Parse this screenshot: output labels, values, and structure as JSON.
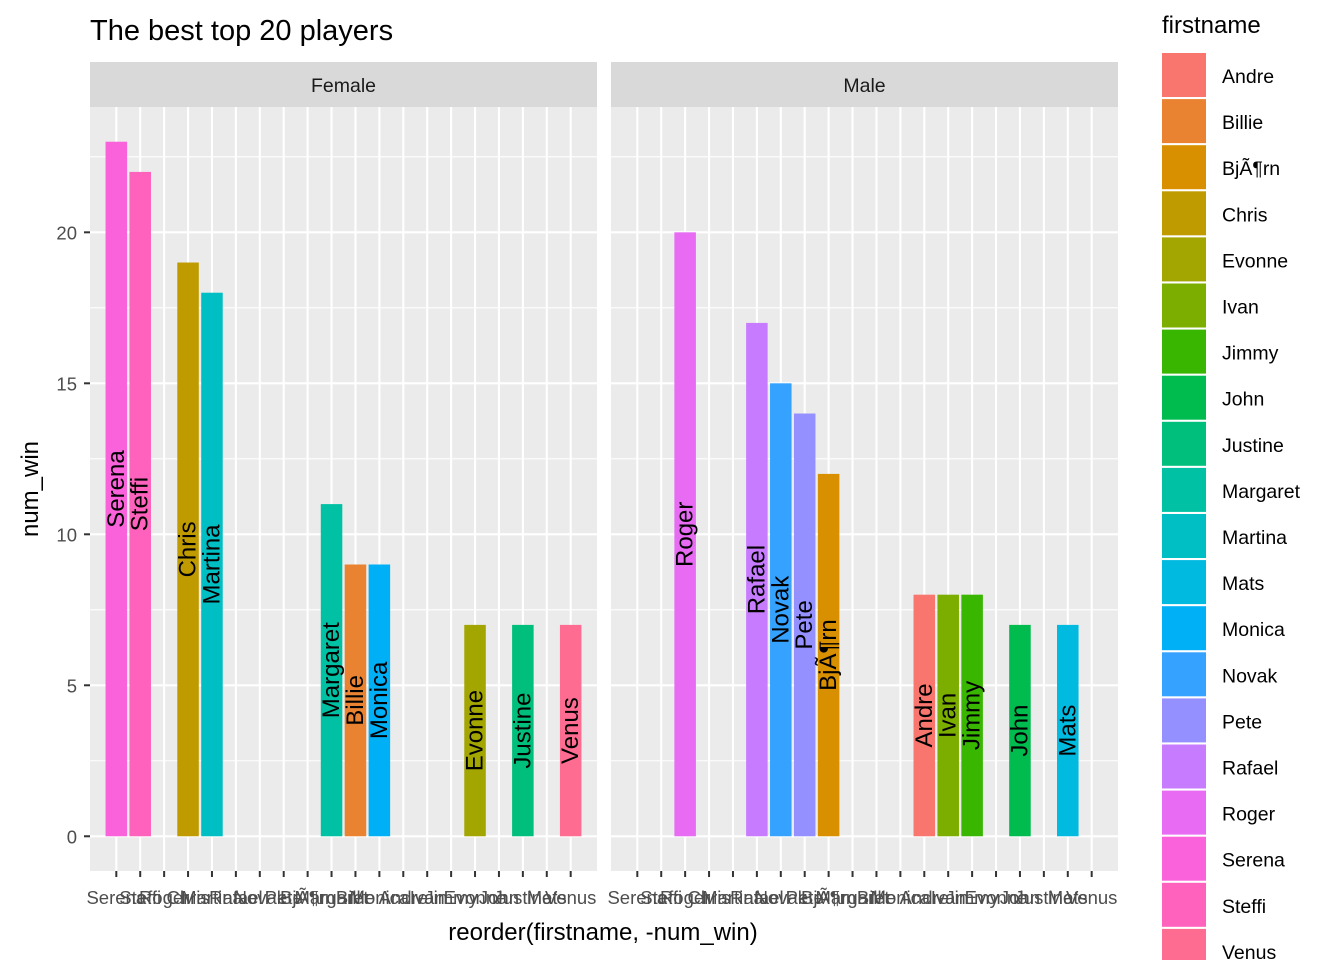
{
  "chart_data": {
    "type": "bar",
    "title": "The best top 20 players",
    "xlabel": "reorder(firstname, -num_win)",
    "ylabel": "num_win",
    "ylim": [
      -1.15,
      24.15
    ],
    "yticks": [
      0,
      5,
      10,
      15,
      20
    ],
    "grid": true,
    "legend_position": "right",
    "legend_title": "firstname",
    "categories": [
      "Serena",
      "Steffi",
      "Roger",
      "Chris",
      "Martina",
      "Rafael",
      "Novak",
      "Pete",
      "BjÃ¶rn",
      "Margaret",
      "Billie",
      "Monica",
      "Andre",
      "Ivan",
      "Jimmy",
      "Evonne",
      "John",
      "Justine",
      "Mats",
      "Venus"
    ],
    "facets": [
      {
        "name": "Female",
        "bars": [
          {
            "x": "Serena",
            "value": 23
          },
          {
            "x": "Steffi",
            "value": 22
          },
          {
            "x": "Chris",
            "value": 19
          },
          {
            "x": "Martina",
            "value": 18
          },
          {
            "x": "Margaret",
            "value": 11
          },
          {
            "x": "Billie",
            "value": 9
          },
          {
            "x": "Monica",
            "value": 9
          },
          {
            "x": "Evonne",
            "value": 7
          },
          {
            "x": "Justine",
            "value": 7
          },
          {
            "x": "Venus",
            "value": 7
          }
        ]
      },
      {
        "name": "Male",
        "bars": [
          {
            "x": "Roger",
            "value": 20
          },
          {
            "x": "Rafael",
            "value": 17
          },
          {
            "x": "Novak",
            "value": 15
          },
          {
            "x": "Pete",
            "value": 14
          },
          {
            "x": "BjÃ¶rn",
            "value": 12
          },
          {
            "x": "Andre",
            "value": 8
          },
          {
            "x": "Ivan",
            "value": 8
          },
          {
            "x": "Jimmy",
            "value": 8
          },
          {
            "x": "John",
            "value": 7
          },
          {
            "x": "Mats",
            "value": 7
          }
        ]
      }
    ],
    "legend": [
      {
        "name": "Andre",
        "color": "#F8766D"
      },
      {
        "name": "Billie",
        "color": "#EA8331"
      },
      {
        "name": "BjÃ¶rn",
        "color": "#D89000"
      },
      {
        "name": "Chris",
        "color": "#C09B00"
      },
      {
        "name": "Evonne",
        "color": "#A3A500"
      },
      {
        "name": "Ivan",
        "color": "#7CAE00"
      },
      {
        "name": "Jimmy",
        "color": "#39B600"
      },
      {
        "name": "John",
        "color": "#00BB4E"
      },
      {
        "name": "Justine",
        "color": "#00BF7D"
      },
      {
        "name": "Margaret",
        "color": "#00C1A3"
      },
      {
        "name": "Martina",
        "color": "#00BFC4"
      },
      {
        "name": "Mats",
        "color": "#00BAE0"
      },
      {
        "name": "Monica",
        "color": "#00B0F6"
      },
      {
        "name": "Novak",
        "color": "#35A2FF"
      },
      {
        "name": "Pete",
        "color": "#9590FF"
      },
      {
        "name": "Rafael",
        "color": "#C77CFF"
      },
      {
        "name": "Roger",
        "color": "#E76BF3"
      },
      {
        "name": "Serena",
        "color": "#FA62DB"
      },
      {
        "name": "Steffi",
        "color": "#FF62BC"
      },
      {
        "name": "Venus",
        "color": "#FF6C91"
      }
    ]
  }
}
